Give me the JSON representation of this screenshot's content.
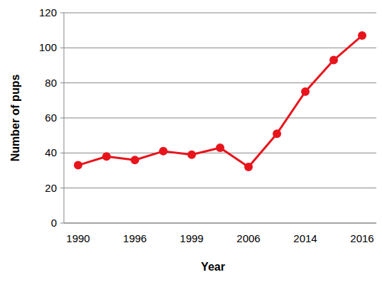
{
  "chart_data": {
    "type": "line",
    "x_label": "Year",
    "y_label": "Number of pups",
    "categories": [
      "1990",
      null,
      "1996",
      null,
      "1999",
      null,
      "2006",
      null,
      "2014",
      null,
      "2016"
    ],
    "values": [
      33,
      38,
      36,
      41,
      39,
      43,
      32,
      51,
      75,
      93,
      107
    ],
    "color": "#e8141c",
    "marker": "circle",
    "ylim": [
      0,
      120
    ],
    "yticks": [
      0,
      20,
      40,
      60,
      80,
      100,
      120
    ],
    "grid": true
  }
}
